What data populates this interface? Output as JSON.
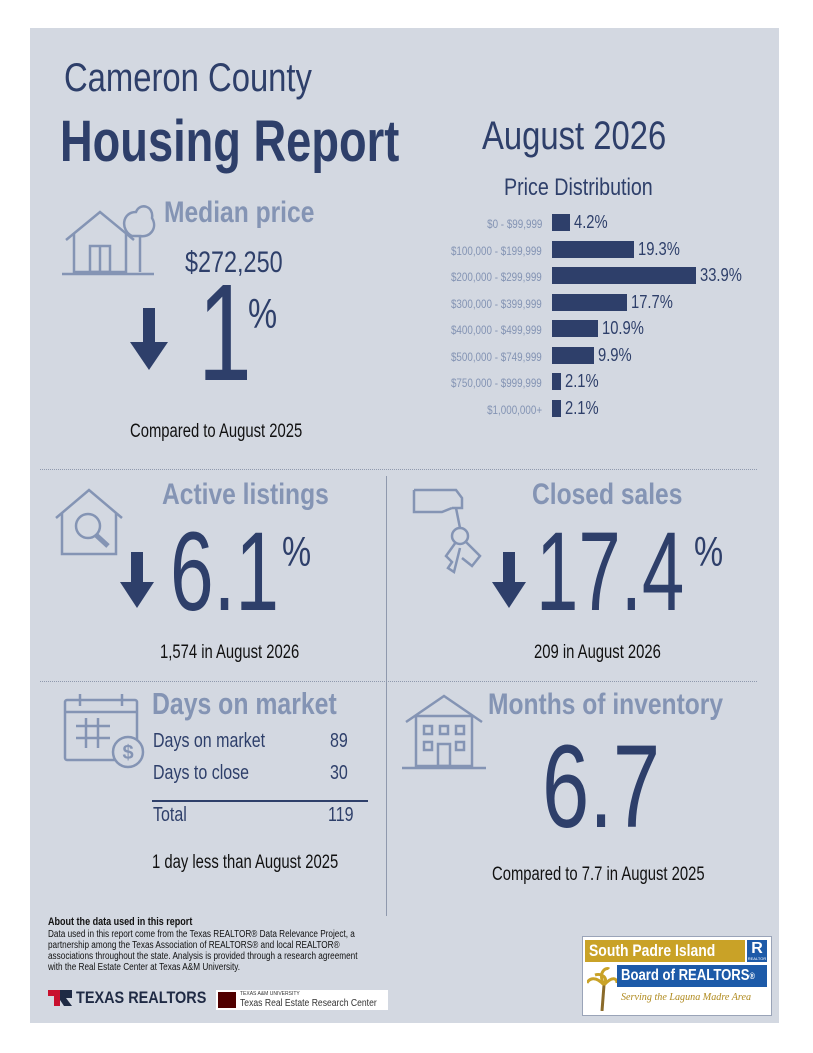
{
  "header": {
    "county": "Cameron County",
    "report": "Housing Report",
    "period": "August 2026"
  },
  "median": {
    "title": "Median price",
    "price": "$272,250",
    "change_number": "1",
    "change_unit": "%",
    "direction": "down",
    "compare": "Compared to August 2025",
    "icon": "house-tree-icon"
  },
  "chart_data": {
    "type": "bar",
    "title": "Price Distribution",
    "orientation": "horizontal",
    "categories": [
      "$0 - $99,999",
      "$100,000 - $199,999",
      "$200,000 - $299,999",
      "$300,000 - $399,999",
      "$400,000 - $499,999",
      "$500,000 - $749,999",
      "$750,000 - $999,999",
      "$1,000,000+"
    ],
    "values": [
      4.2,
      19.3,
      33.9,
      17.7,
      10.9,
      9.9,
      2.1,
      2.1
    ],
    "value_labels": [
      "4.2%",
      "19.3%",
      "33.9%",
      "17.7%",
      "10.9%",
      "9.9%",
      "2.1%",
      "2.1%"
    ],
    "color": "#2e3f6a"
  },
  "active": {
    "title": "Active listings",
    "change_number": "6.1",
    "change_unit": "%",
    "direction": "down",
    "note": "1,574 in August 2026",
    "icon": "house-search-icon"
  },
  "closed": {
    "title": "Closed sales",
    "change_number": "17.4",
    "change_unit": "%",
    "direction": "down",
    "note": "209 in August 2026",
    "icon": "hand-keys-icon"
  },
  "dom": {
    "title": "Days on market",
    "rows": [
      {
        "label": "Days on market",
        "value": "89"
      },
      {
        "label": "Days to close",
        "value": "30"
      }
    ],
    "total_label": "Total",
    "total_value": "119",
    "note": "1 day less than August 2025",
    "icon": "calendar-dollar-icon"
  },
  "inventory": {
    "title": "Months of inventory",
    "value": "6.7",
    "note": "Compared to 7.7 in August 2025",
    "icon": "apartment-building-icon"
  },
  "about": {
    "heading": "About the data used in this report",
    "body": "Data used in this report come from the Texas REALTOR® Data Relevance Project, a partnership among the Texas Association of REALTORS® and local REALTOR® associations throughout the state. Analysis is provided through a research agreement with the Real Estate Center at Texas A&M University."
  },
  "logos": {
    "texas_realtors": "TEXAS REALTORS",
    "tamu_small": "TEXAS A&M UNIVERSITY",
    "tamu": "Texas Real Estate Research Center",
    "spi_line1": "South Padre Island",
    "spi_line2": "Board of REALTORS",
    "spi_reg": "®",
    "spi_tagline": "Serving the Laguna Madre Area",
    "spi_r_mark": "R",
    "spi_r_sub": "REALTOR"
  },
  "colors": {
    "background": "#d3d8e1",
    "navy": "#2e3f6a",
    "muted": "#8494b4",
    "spi_gold": "#c9a227",
    "spi_blue": "#1d5aa8"
  }
}
